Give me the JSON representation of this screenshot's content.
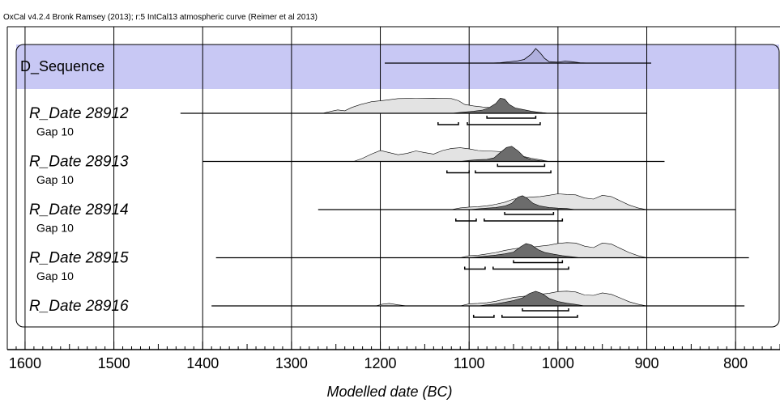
{
  "header": "OxCal v4.2.4 Bronk Ramsey (2013); r:5 IntCal13 atmospheric curve (Reimer et al 2013)",
  "chart_data": {
    "type": "area",
    "xlabel": "Modelled date (BC)",
    "xlim": [
      1620,
      750
    ],
    "x_reversed": true,
    "xticks": [
      1600,
      1500,
      1400,
      1300,
      1200,
      1100,
      1000,
      900,
      800
    ],
    "minor_tick_step": 10,
    "grid": true,
    "sequence": {
      "name": "D_Sequence",
      "range": [
        1195,
        895
      ],
      "posterior": [
        [
          1075,
          0
        ],
        [
          1065,
          0.03
        ],
        [
          1055,
          0.09
        ],
        [
          1045,
          0.16
        ],
        [
          1038,
          0.25
        ],
        [
          1030,
          0.62
        ],
        [
          1025,
          1
        ],
        [
          1020,
          0.7
        ],
        [
          1015,
          0.32
        ],
        [
          1010,
          0.1
        ],
        [
          1000,
          0.06
        ],
        [
          992,
          0.14
        ],
        [
          985,
          0.1
        ],
        [
          975,
          0.02
        ],
        [
          965,
          0
        ]
      ]
    },
    "rows": [
      {
        "kind": "date",
        "name": "R_Date 28912",
        "range": [
          1425,
          900
        ],
        "prior": [
          [
            1265,
            0
          ],
          [
            1255,
            0.1
          ],
          [
            1248,
            0.16
          ],
          [
            1240,
            0.12
          ],
          [
            1232,
            0.28
          ],
          [
            1222,
            0.42
          ],
          [
            1210,
            0.55
          ],
          [
            1195,
            0.62
          ],
          [
            1180,
            0.7
          ],
          [
            1160,
            0.71
          ],
          [
            1140,
            0.72
          ],
          [
            1120,
            0.7
          ],
          [
            1112,
            0.6
          ],
          [
            1105,
            0.42
          ],
          [
            1095,
            0.35
          ],
          [
            1085,
            0.3
          ],
          [
            1070,
            0.25
          ],
          [
            1060,
            0.22
          ],
          [
            1045,
            0.15
          ],
          [
            1035,
            0.08
          ],
          [
            1020,
            0.04
          ],
          [
            1010,
            0
          ]
        ],
        "posterior": [
          [
            1120,
            0
          ],
          [
            1110,
            0.05
          ],
          [
            1095,
            0.12
          ],
          [
            1085,
            0.18
          ],
          [
            1078,
            0.3
          ],
          [
            1070,
            0.55
          ],
          [
            1065,
            0.85
          ],
          [
            1060,
            0.8
          ],
          [
            1055,
            0.5
          ],
          [
            1048,
            0.3
          ],
          [
            1040,
            0.22
          ],
          [
            1030,
            0.12
          ],
          [
            1020,
            0.05
          ],
          [
            1010,
            0
          ]
        ],
        "hpd": {
          "sigma1": [
            [
              1080,
              1025
            ]
          ],
          "sigma2": [
            [
              1135,
              1112
            ],
            [
              1102,
              1020
            ]
          ]
        }
      },
      {
        "kind": "gap",
        "name": "Gap 10"
      },
      {
        "kind": "date",
        "name": "R_Date 28913",
        "range": [
          1400,
          880
        ],
        "prior": [
          [
            1230,
            0
          ],
          [
            1220,
            0.15
          ],
          [
            1210,
            0.35
          ],
          [
            1200,
            0.52
          ],
          [
            1190,
            0.42
          ],
          [
            1180,
            0.32
          ],
          [
            1170,
            0.38
          ],
          [
            1160,
            0.5
          ],
          [
            1150,
            0.42
          ],
          [
            1140,
            0.35
          ],
          [
            1130,
            0.52
          ],
          [
            1120,
            0.62
          ],
          [
            1110,
            0.65
          ],
          [
            1100,
            0.6
          ],
          [
            1090,
            0.52
          ],
          [
            1080,
            0.5
          ],
          [
            1070,
            0.48
          ],
          [
            1060,
            0.45
          ],
          [
            1050,
            0.38
          ],
          [
            1040,
            0.25
          ],
          [
            1030,
            0.15
          ],
          [
            1020,
            0.08
          ],
          [
            1010,
            0
          ]
        ],
        "posterior": [
          [
            1110,
            0
          ],
          [
            1100,
            0.06
          ],
          [
            1090,
            0.1
          ],
          [
            1080,
            0.12
          ],
          [
            1072,
            0.2
          ],
          [
            1065,
            0.5
          ],
          [
            1058,
            0.78
          ],
          [
            1052,
            0.85
          ],
          [
            1045,
            0.6
          ],
          [
            1038,
            0.25
          ],
          [
            1030,
            0.1
          ],
          [
            1020,
            0.04
          ],
          [
            1010,
            0
          ]
        ],
        "hpd": {
          "sigma1": [
            [
              1068,
              1015
            ]
          ],
          "sigma2": [
            [
              1125,
              1100
            ],
            [
              1093,
              1008
            ]
          ]
        }
      },
      {
        "kind": "gap",
        "name": "Gap 10"
      },
      {
        "kind": "date",
        "name": "R_Date 28914",
        "range": [
          1270,
          800
        ],
        "prior": [
          [
            1120,
            0
          ],
          [
            1110,
            0.08
          ],
          [
            1100,
            0.12
          ],
          [
            1090,
            0.14
          ],
          [
            1080,
            0.18
          ],
          [
            1070,
            0.25
          ],
          [
            1060,
            0.35
          ],
          [
            1050,
            0.5
          ],
          [
            1040,
            0.55
          ],
          [
            1030,
            0.6
          ],
          [
            1020,
            0.62
          ],
          [
            1010,
            0.68
          ],
          [
            1000,
            0.75
          ],
          [
            990,
            0.72
          ],
          [
            980,
            0.7
          ],
          [
            970,
            0.55
          ],
          [
            960,
            0.5
          ],
          [
            950,
            0.68
          ],
          [
            940,
            0.62
          ],
          [
            930,
            0.42
          ],
          [
            920,
            0.22
          ],
          [
            910,
            0.08
          ],
          [
            900,
            0
          ]
        ],
        "posterior": [
          [
            1100,
            0
          ],
          [
            1090,
            0.04
          ],
          [
            1080,
            0.08
          ],
          [
            1070,
            0.12
          ],
          [
            1060,
            0.2
          ],
          [
            1052,
            0.35
          ],
          [
            1045,
            0.7
          ],
          [
            1040,
            0.78
          ],
          [
            1035,
            0.65
          ],
          [
            1028,
            0.35
          ],
          [
            1020,
            0.2
          ],
          [
            1010,
            0.12
          ],
          [
            1000,
            0.08
          ],
          [
            990,
            0.06
          ],
          [
            980,
            0
          ]
        ],
        "hpd": {
          "sigma1": [
            [
              1060,
              1005
            ]
          ],
          "sigma2": [
            [
              1115,
              1092
            ],
            [
              1083,
              995
            ]
          ]
        }
      },
      {
        "kind": "gap",
        "name": "Gap 10"
      },
      {
        "kind": "date",
        "name": "R_Date 28915",
        "range": [
          1385,
          785
        ],
        "prior": [
          [
            1110,
            0
          ],
          [
            1100,
            0.1
          ],
          [
            1090,
            0.12
          ],
          [
            1080,
            0.18
          ],
          [
            1070,
            0.25
          ],
          [
            1060,
            0.35
          ],
          [
            1050,
            0.42
          ],
          [
            1040,
            0.48
          ],
          [
            1030,
            0.5
          ],
          [
            1020,
            0.55
          ],
          [
            1010,
            0.6
          ],
          [
            1000,
            0.68
          ],
          [
            990,
            0.72
          ],
          [
            980,
            0.7
          ],
          [
            970,
            0.55
          ],
          [
            960,
            0.48
          ],
          [
            950,
            0.7
          ],
          [
            940,
            0.65
          ],
          [
            930,
            0.45
          ],
          [
            920,
            0.25
          ],
          [
            910,
            0.1
          ],
          [
            900,
            0
          ]
        ],
        "posterior": [
          [
            1100,
            0
          ],
          [
            1090,
            0.05
          ],
          [
            1080,
            0.1
          ],
          [
            1070,
            0.15
          ],
          [
            1060,
            0.22
          ],
          [
            1050,
            0.32
          ],
          [
            1042,
            0.62
          ],
          [
            1036,
            0.8
          ],
          [
            1030,
            0.72
          ],
          [
            1022,
            0.45
          ],
          [
            1015,
            0.3
          ],
          [
            1005,
            0.2
          ],
          [
            995,
            0.12
          ],
          [
            985,
            0.06
          ],
          [
            975,
            0
          ]
        ],
        "hpd": {
          "sigma1": [
            [
              1050,
              995
            ]
          ],
          "sigma2": [
            [
              1105,
              1082
            ],
            [
              1073,
              988
            ]
          ]
        }
      },
      {
        "kind": "gap",
        "name": "Gap 10"
      },
      {
        "kind": "date",
        "name": "R_Date 28916",
        "range": [
          1390,
          790
        ],
        "prior": [
          [
            1205,
            0
          ],
          [
            1198,
            0.08
          ],
          [
            1190,
            0.12
          ],
          [
            1180,
            0.05
          ],
          [
            1170,
            0
          ],
          [
            1110,
            0
          ],
          [
            1100,
            0.1
          ],
          [
            1090,
            0.12
          ],
          [
            1080,
            0.15
          ],
          [
            1070,
            0.22
          ],
          [
            1060,
            0.32
          ],
          [
            1050,
            0.4
          ],
          [
            1040,
            0.45
          ],
          [
            1030,
            0.5
          ],
          [
            1020,
            0.55
          ],
          [
            1010,
            0.6
          ],
          [
            1000,
            0.68
          ],
          [
            990,
            0.7
          ],
          [
            980,
            0.66
          ],
          [
            970,
            0.52
          ],
          [
            960,
            0.5
          ],
          [
            950,
            0.62
          ],
          [
            940,
            0.55
          ],
          [
            930,
            0.38
          ],
          [
            920,
            0.2
          ],
          [
            910,
            0.08
          ],
          [
            900,
            0
          ]
        ],
        "posterior": [
          [
            1090,
            0
          ],
          [
            1080,
            0.06
          ],
          [
            1070,
            0.12
          ],
          [
            1060,
            0.2
          ],
          [
            1050,
            0.3
          ],
          [
            1040,
            0.45
          ],
          [
            1032,
            0.7
          ],
          [
            1025,
            0.82
          ],
          [
            1018,
            0.7
          ],
          [
            1010,
            0.42
          ],
          [
            1000,
            0.25
          ],
          [
            990,
            0.15
          ],
          [
            980,
            0.08
          ],
          [
            970,
            0
          ]
        ],
        "hpd": {
          "sigma1": [
            [
              1040,
              988
            ]
          ],
          "sigma2": [
            [
              1095,
              1072
            ],
            [
              1063,
              978
            ]
          ]
        }
      }
    ],
    "colors": {
      "sequence_band": "#c8c8f4",
      "sequence_posterior": "#b0b0de",
      "prior_fill": "#e3e3e3",
      "posterior_fill": "#6c6c6c",
      "line": "#000000",
      "grid": "#000000"
    }
  }
}
